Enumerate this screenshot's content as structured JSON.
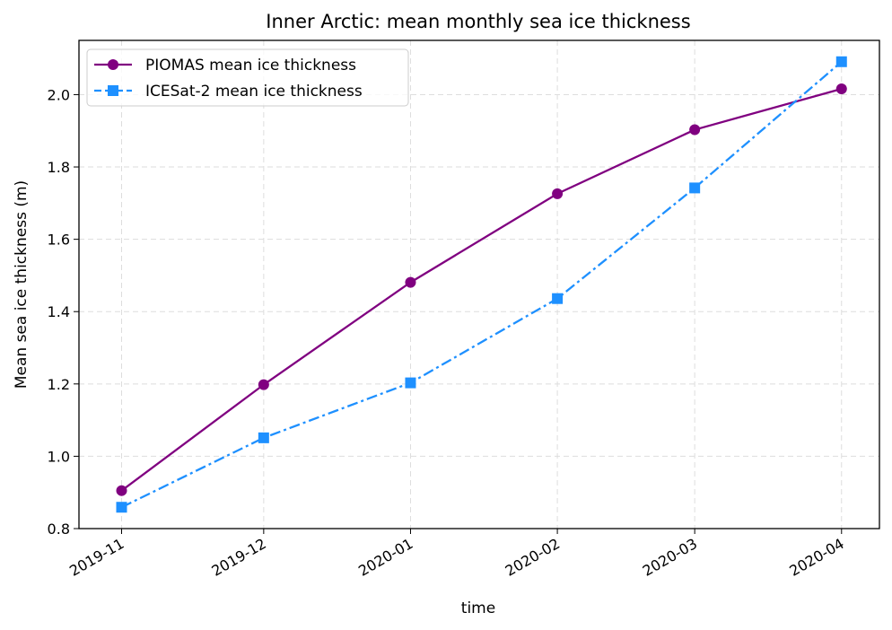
{
  "chart_data": {
    "type": "line",
    "title": "Inner Arctic: mean monthly sea ice thickness",
    "xlabel": "time",
    "ylabel": "Mean sea ice thickness (m)",
    "x": [
      "2019-11-01",
      "2019-12-01",
      "2020-01-01",
      "2020-02-01",
      "2020-03-01",
      "2020-04-01"
    ],
    "xtick_labels": [
      "2019-11",
      "2019-12",
      "2020-01",
      "2020-02",
      "2020-03",
      "2020-04"
    ],
    "ylim": [
      0.8,
      2.15
    ],
    "yticks": [
      0.8,
      1.0,
      1.2,
      1.4,
      1.6,
      1.8,
      2.0
    ],
    "ytick_labels": [
      "0.8",
      "1.0",
      "1.2",
      "1.4",
      "1.6",
      "1.8",
      "2.0"
    ],
    "grid": true,
    "legend_position": "top-left",
    "series": [
      {
        "name": "PIOMAS mean ice thickness",
        "values": [
          0.905,
          1.198,
          1.481,
          1.726,
          1.903,
          2.016
        ],
        "color": "#800080",
        "line_style": "solid",
        "marker": "circle"
      },
      {
        "name": "ICESat-2 mean ice thickness",
        "values": [
          0.859,
          1.051,
          1.203,
          1.436,
          1.742,
          2.091
        ],
        "color": "#1e90ff",
        "line_style": "dash-dot",
        "marker": "square"
      }
    ]
  }
}
